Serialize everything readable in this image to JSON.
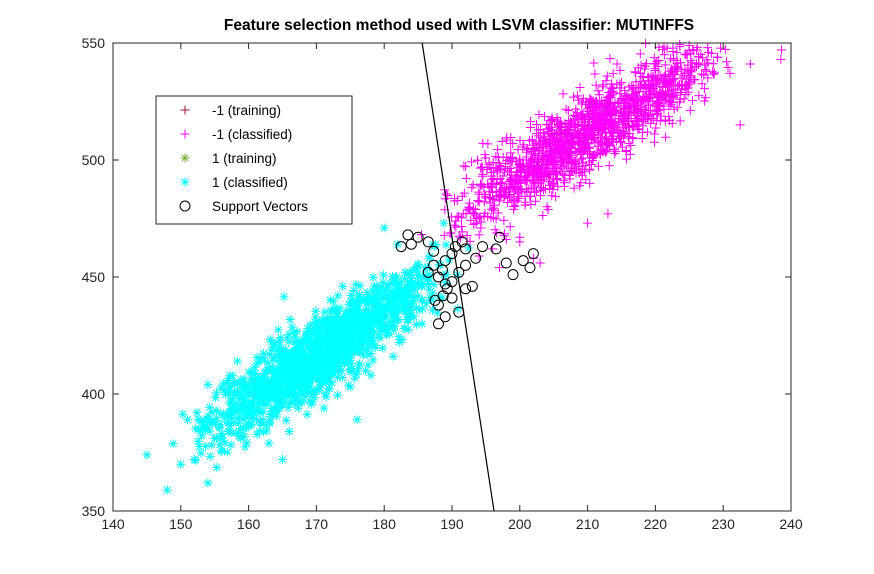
{
  "chart_data": {
    "type": "scatter",
    "title": "Feature selection method used with LSVM classifier: MUTINFFS",
    "xlabel": "",
    "ylabel": "",
    "xlim": [
      140,
      240
    ],
    "ylim": [
      350,
      550
    ],
    "xticks": [
      140,
      150,
      160,
      170,
      180,
      190,
      200,
      210,
      220,
      230,
      240
    ],
    "yticks": [
      350,
      400,
      450,
      500,
      550
    ],
    "grid": false,
    "legend_position": "top-left",
    "decision_boundary": {
      "x": [
        185.6,
        196.2
      ],
      "y": [
        550,
        350
      ],
      "color": "#000000"
    },
    "series": [
      {
        "name": "-1 (training)",
        "marker": "plus",
        "color": "#a2142f",
        "points": []
      },
      {
        "name": "-1 (classified)",
        "marker": "plus",
        "color": "#ff00ff",
        "cloud": {
          "x_range": [
            188,
            231
          ],
          "slope": 1.72,
          "intercept": 150,
          "spread": 8,
          "count": 1500
        },
        "points": [
          [
            238.6,
            547
          ],
          [
            238.5,
            543
          ],
          [
            230.5,
            542
          ],
          [
            234,
            541
          ],
          [
            227.5,
            538
          ],
          [
            231,
            537
          ],
          [
            232.5,
            515
          ],
          [
            224,
            532
          ],
          [
            224.5,
            528
          ],
          [
            217,
            519
          ],
          [
            222,
            523
          ],
          [
            216,
            510
          ],
          [
            213,
            506
          ],
          [
            208,
            488
          ],
          [
            204,
            480
          ],
          [
            198,
            466
          ],
          [
            194,
            468
          ],
          [
            200,
            467
          ],
          [
            202,
            458
          ],
          [
            200,
            465
          ],
          [
            196,
            462
          ],
          [
            203,
            456
          ],
          [
            210,
            473
          ],
          [
            213,
            477
          ],
          [
            194,
            459
          ],
          [
            197,
            454
          ]
        ]
      },
      {
        "name": "1 (training)",
        "marker": "asterisk",
        "color": "#77ac30",
        "points": []
      },
      {
        "name": "1 (classified)",
        "marker": "asterisk",
        "color": "#00ffff",
        "cloud": {
          "x_range": [
            152,
            190
          ],
          "slope": 1.92,
          "intercept": 90,
          "spread": 8,
          "count": 1500
        },
        "points": [
          [
            145,
            374
          ],
          [
            148,
            359
          ],
          [
            150,
            370
          ],
          [
            154,
            362
          ],
          [
            151,
            389
          ],
          [
            152,
            372
          ],
          [
            155,
            381
          ],
          [
            158,
            392
          ],
          [
            157,
            384
          ],
          [
            160,
            386
          ],
          [
            163,
            379
          ],
          [
            165,
            372
          ],
          [
            166,
            384
          ],
          [
            176,
            389
          ],
          [
            175,
            403
          ],
          [
            171,
            406
          ],
          [
            154,
            404
          ],
          [
            160,
            400
          ],
          [
            180,
            471
          ],
          [
            182,
            464
          ]
        ]
      },
      {
        "name": "Support Vectors",
        "marker": "circle",
        "color": "#000000",
        "points": [
          [
            191.5,
            465
          ],
          [
            190.5,
            463
          ],
          [
            192,
            462
          ],
          [
            190,
            460
          ],
          [
            189,
            457
          ],
          [
            188.6,
            453
          ],
          [
            190,
            448
          ],
          [
            189.3,
            445
          ],
          [
            188.7,
            442
          ],
          [
            188,
            438
          ],
          [
            187.5,
            440
          ],
          [
            189,
            433
          ],
          [
            188,
            430
          ],
          [
            191,
            435
          ],
          [
            192,
            445
          ],
          [
            193,
            446
          ],
          [
            190,
            441
          ],
          [
            183.5,
            468
          ],
          [
            185,
            467
          ],
          [
            184,
            464
          ],
          [
            182.5,
            463
          ],
          [
            186.5,
            465
          ],
          [
            187.3,
            461
          ],
          [
            187.3,
            455
          ],
          [
            188,
            450
          ],
          [
            186.5,
            452
          ],
          [
            189,
            447
          ],
          [
            191,
            452
          ],
          [
            192,
            455
          ],
          [
            193.5,
            458
          ],
          [
            194.5,
            463
          ],
          [
            196.5,
            462
          ],
          [
            197,
            467
          ],
          [
            199,
            451
          ],
          [
            198,
            456
          ],
          [
            200.5,
            457
          ],
          [
            201.5,
            454
          ],
          [
            202,
            460
          ]
        ]
      }
    ]
  }
}
